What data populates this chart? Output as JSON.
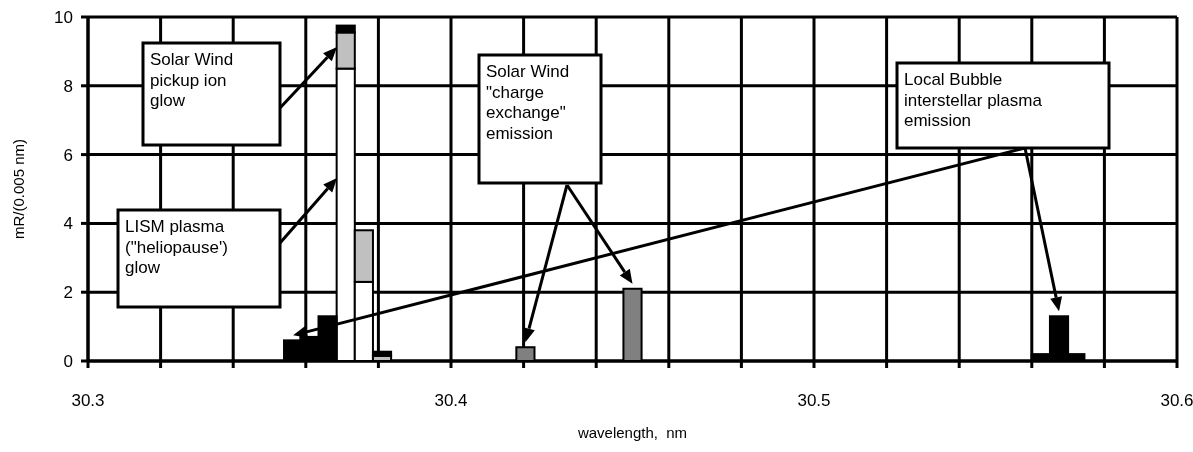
{
  "chart_data": {
    "type": "bar",
    "stacked": true,
    "xlabel": "wavelength,  nm",
    "ylabel": "mR/(0.005 nm)",
    "x": [
      30.3565,
      30.361,
      30.366,
      30.371,
      30.376,
      30.381,
      30.4205,
      30.45,
      30.5625,
      30.5675,
      30.572
    ],
    "series": [
      {
        "color": "#ffffff",
        "values": [
          null,
          null,
          null,
          8.5,
          2.3,
          null,
          null,
          null,
          null,
          null,
          null
        ]
      },
      {
        "color": "#c0c0c0",
        "values": [
          null,
          null,
          null,
          1.05,
          1.5,
          0.15,
          null,
          null,
          null,
          null,
          null
        ]
      },
      {
        "color": "#808080",
        "values": [
          null,
          null,
          null,
          null,
          null,
          null,
          0.4,
          2.1,
          null,
          null,
          null
        ]
      },
      {
        "color": "#000000",
        "values": [
          0.6,
          0.7,
          1.3,
          0.2,
          null,
          0.12,
          null,
          null,
          0.2,
          1.3,
          0.2
        ]
      }
    ],
    "xlim": [
      30.3,
      30.6
    ],
    "xticks": [
      30.3,
      {
        "value": 30.32,
        "label": null
      },
      {
        "value": 30.34,
        "label": null
      },
      {
        "value": 30.36,
        "label": null
      },
      {
        "value": 30.38,
        "label": null
      },
      30.4,
      {
        "value": 30.42,
        "label": null
      },
      {
        "value": 30.44,
        "label": null
      },
      {
        "value": 30.46,
        "label": null
      },
      {
        "value": 30.48,
        "label": null
      },
      30.5,
      {
        "value": 30.52,
        "label": null
      },
      {
        "value": 30.54,
        "label": null
      },
      {
        "value": 30.56,
        "label": null
      },
      {
        "value": 30.58,
        "label": null
      },
      30.6
    ],
    "ylim": [
      0,
      10
    ],
    "yticks": [
      0,
      2,
      4,
      6,
      8,
      10
    ],
    "grid": true,
    "annotations": [
      "Solar Wind\npickup ion\nglow",
      "LISM plasma\n(\"heliopause')\nglow",
      "Solar Wind\n\"charge\nexchange\"\nemission",
      "Local Bubble\ninterstellar plasma\nemission"
    ]
  }
}
